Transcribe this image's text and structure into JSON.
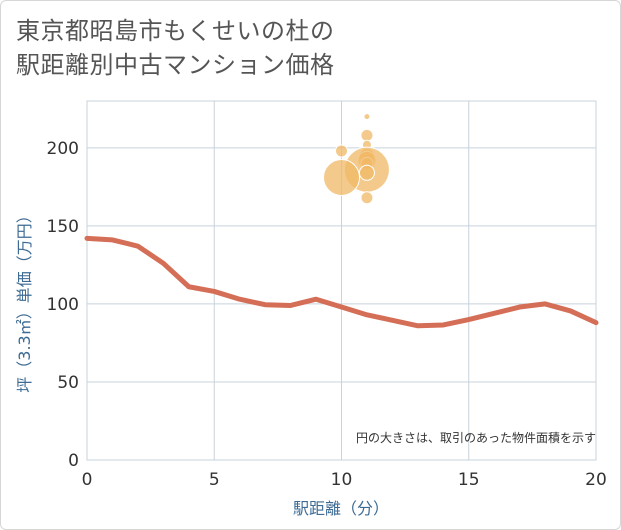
{
  "title_lines": [
    "東京都昭島市もくせいの杜の",
    "駅距離別中古マンション価格"
  ],
  "chart_data": {
    "type": "scatter",
    "title": "東京都昭島市もくせいの杜の駅距離別中古マンション価格",
    "xlabel": "駅距離（分）",
    "ylabel": "坪（3.3㎡）単価（万円）",
    "xlim": [
      0,
      20
    ],
    "ylim": [
      0,
      230
    ],
    "xticks": [
      0,
      5,
      10,
      15,
      20
    ],
    "yticks": [
      0,
      50,
      100,
      150,
      200
    ],
    "grid": true,
    "note": "円の大きさは、取引のあった物件面積を示す",
    "colors": {
      "bubble": "#f0b866",
      "line": "#d46e56",
      "grid": "#c8d3dc",
      "text": "#333333",
      "axis_title": "#3d6b94"
    },
    "bubbles": [
      {
        "x": 11,
        "y": 220,
        "size": 1
      },
      {
        "x": 11,
        "y": 208,
        "size": 3
      },
      {
        "x": 11,
        "y": 202,
        "size": 2
      },
      {
        "x": 10,
        "y": 198,
        "size": 3
      },
      {
        "x": 11,
        "y": 195,
        "size": 4
      },
      {
        "x": 11,
        "y": 192,
        "size": 5
      },
      {
        "x": 11,
        "y": 190,
        "size": 3
      },
      {
        "x": 11,
        "y": 186,
        "size": 14
      },
      {
        "x": 11,
        "y": 184,
        "size": 4
      },
      {
        "x": 10,
        "y": 181,
        "size": 11
      },
      {
        "x": 11,
        "y": 168,
        "size": 3
      }
    ],
    "line": {
      "x": [
        0,
        1,
        2,
        3,
        4,
        5,
        6,
        7,
        8,
        9,
        10,
        11,
        12,
        13,
        14,
        15,
        16,
        17,
        18,
        19,
        20
      ],
      "y": [
        142,
        141,
        137,
        126,
        111,
        108,
        103,
        99.5,
        99,
        103,
        98,
        93,
        89.5,
        86,
        86.5,
        90,
        94,
        98,
        100,
        95.5,
        88
      ]
    }
  }
}
